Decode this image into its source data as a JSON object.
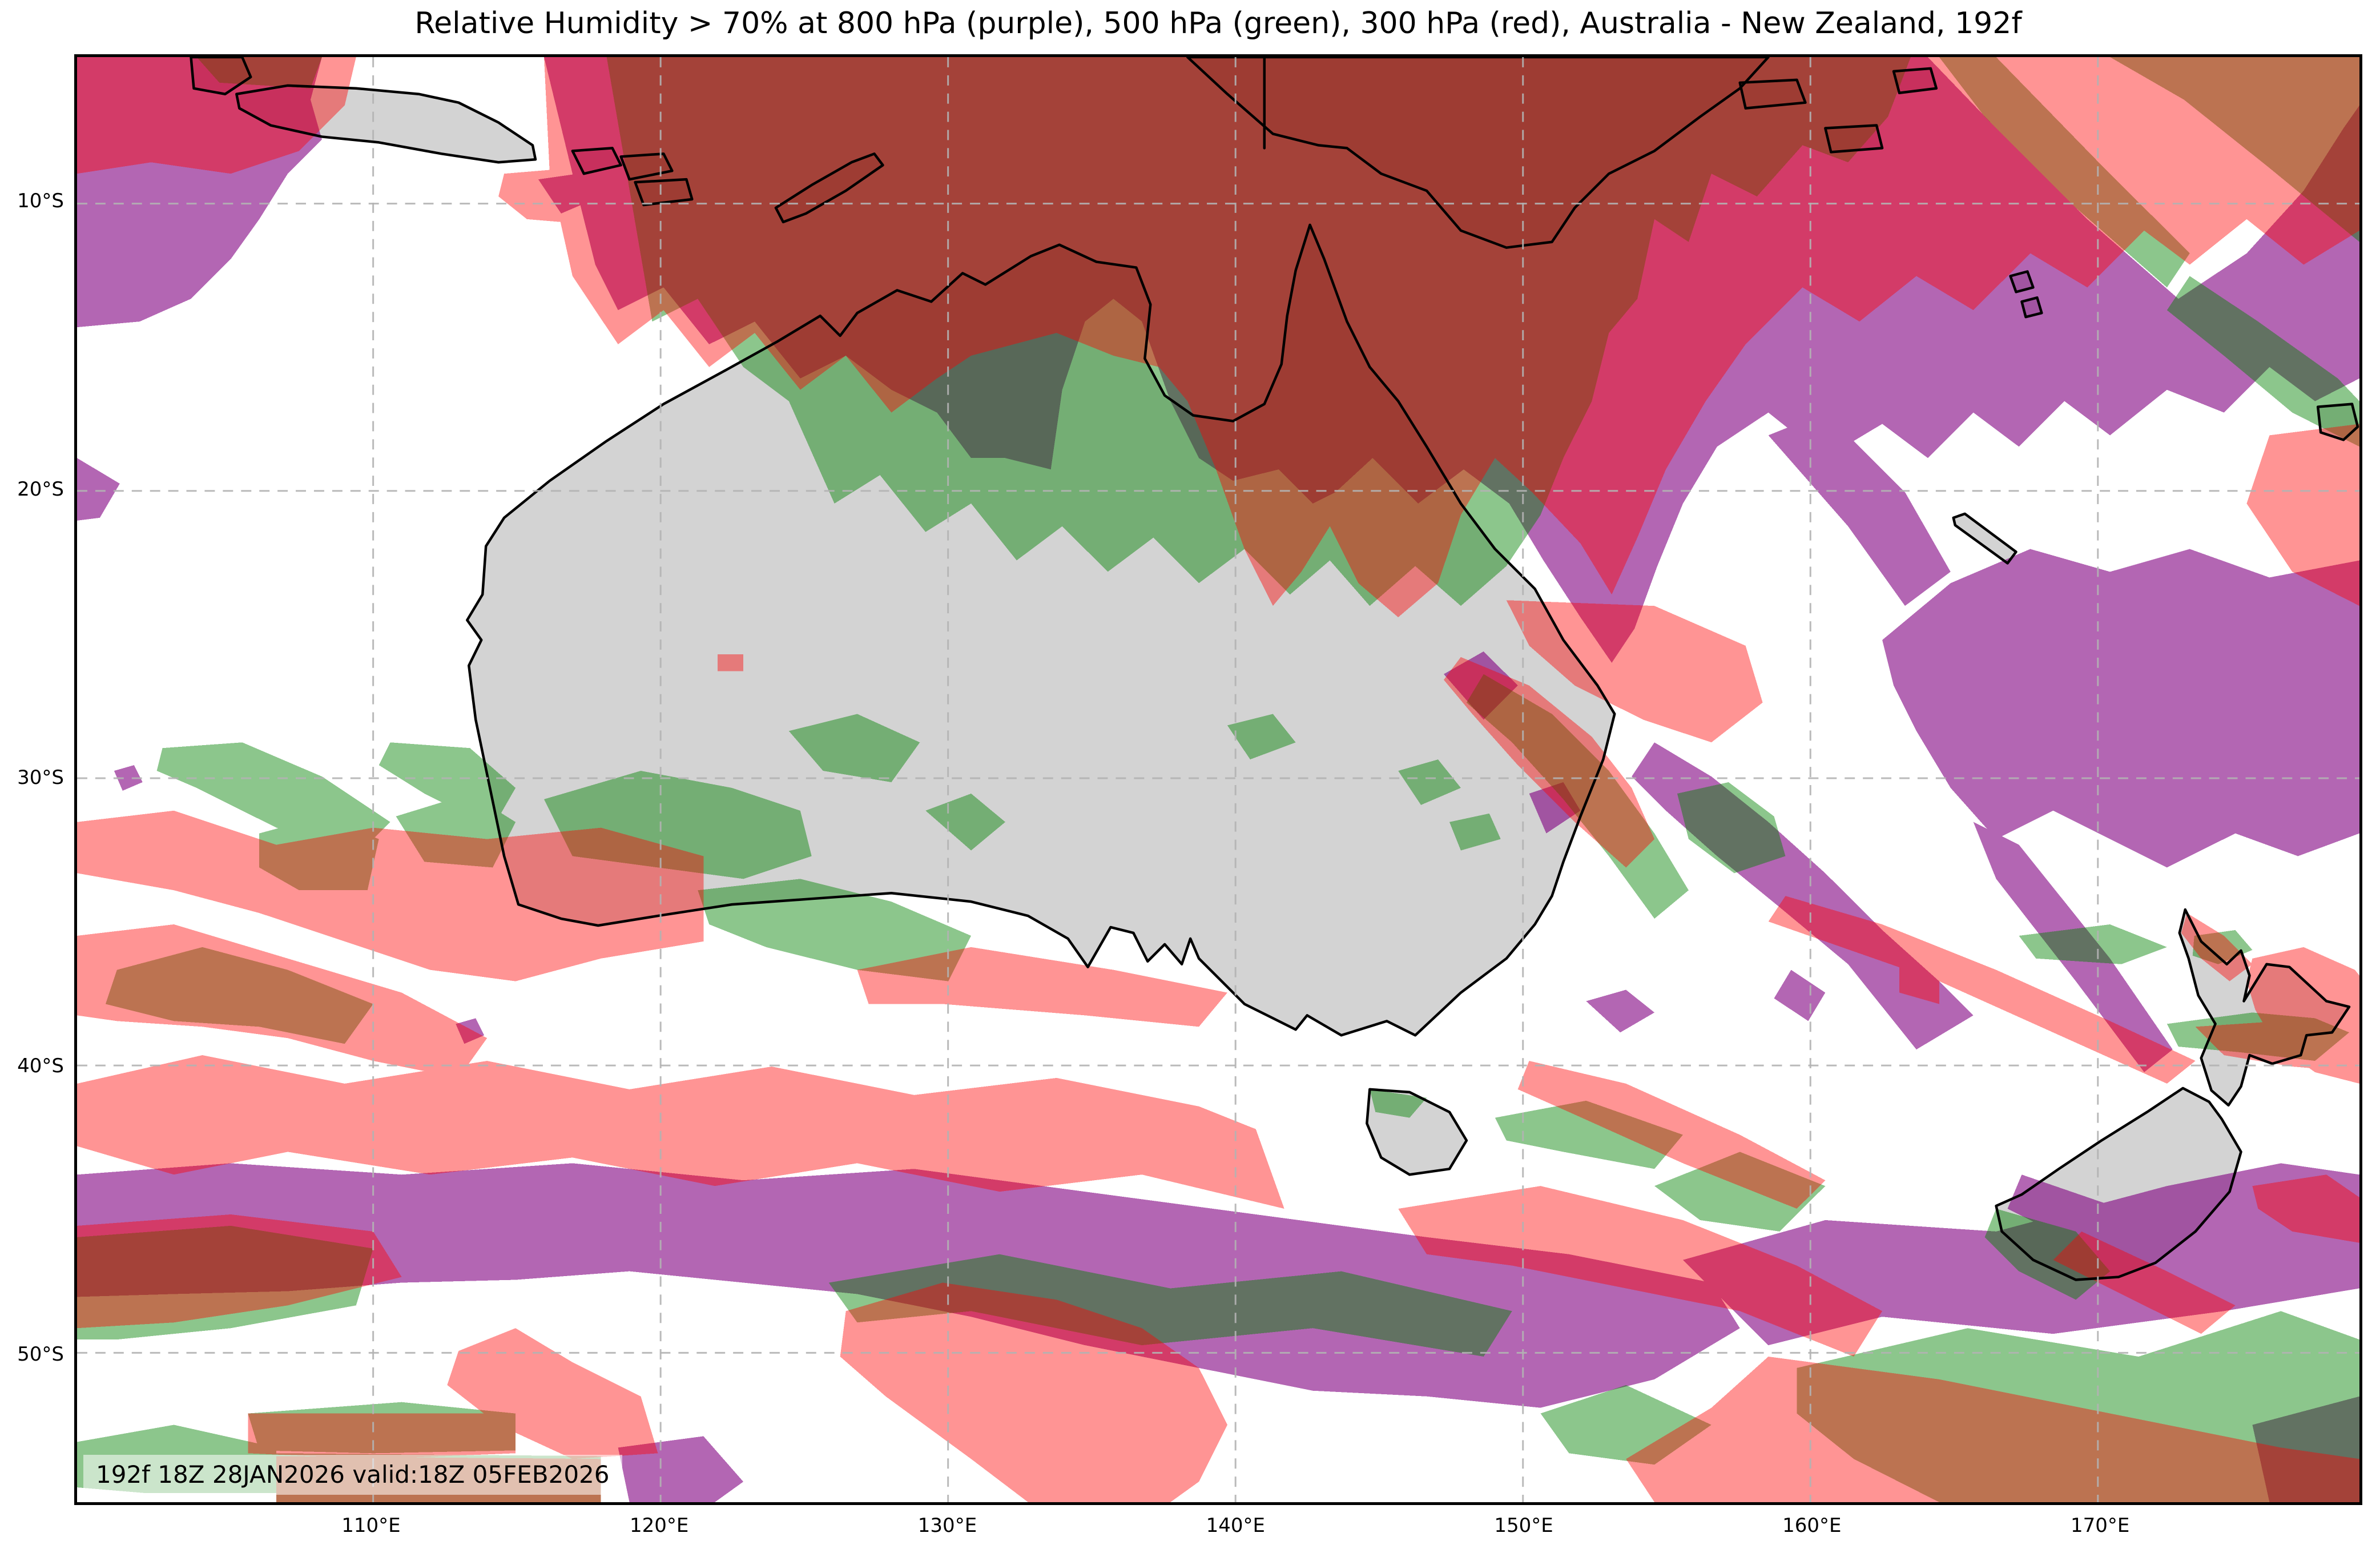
{
  "title": "Relative Humidity > 70% at 800 hPa (purple), 500 hPa (green), 300 hPa (red), Australia - New Zealand, 192f",
  "variable": "Relative Humidity > 70%",
  "region": "Australia - New Zealand",
  "forecast_hour": "192f",
  "annotation": {
    "text": "192f 18Z 28JAN2026 valid:18Z 05FEB2026",
    "run": "18Z 28JAN2026",
    "valid": "18Z 05FEB2026",
    "bg": "rgba(255,255,255,0.55)"
  },
  "levels": [
    {
      "level": "800 hPa",
      "color_name": "purple",
      "fill": "#800080",
      "opacity": 0.6
    },
    {
      "level": "500 hPa",
      "color_name": "green",
      "fill": "#008000",
      "opacity": 0.45
    },
    {
      "level": "300 hPa",
      "color_name": "red",
      "fill": "#ff0000",
      "opacity": 0.42
    }
  ],
  "colors": {
    "ocean": "#ffffff",
    "land": "#d3d3d3",
    "coastline": "#000000",
    "gridline": "#b3b3b3",
    "border": "#000000",
    "title_text": "#000000"
  },
  "axes": {
    "lon_min": 99.7,
    "lon_max": 179.1,
    "lat_min": -55.2,
    "lat_max": -4.9,
    "lon_ticks": [
      {
        "deg": 110,
        "label": "110°E"
      },
      {
        "deg": 120,
        "label": "120°E"
      },
      {
        "deg": 130,
        "label": "130°E"
      },
      {
        "deg": 140,
        "label": "140°E"
      },
      {
        "deg": 150,
        "label": "150°E"
      },
      {
        "deg": 160,
        "label": "160°E"
      },
      {
        "deg": 170,
        "label": "170°E"
      }
    ],
    "lat_ticks": [
      {
        "deg": -10,
        "label": "10°S"
      },
      {
        "deg": -20,
        "label": "20°S"
      },
      {
        "deg": -30,
        "label": "30°S"
      },
      {
        "deg": -40,
        "label": "40°S"
      },
      {
        "deg": -50,
        "label": "50°S"
      }
    ]
  }
}
